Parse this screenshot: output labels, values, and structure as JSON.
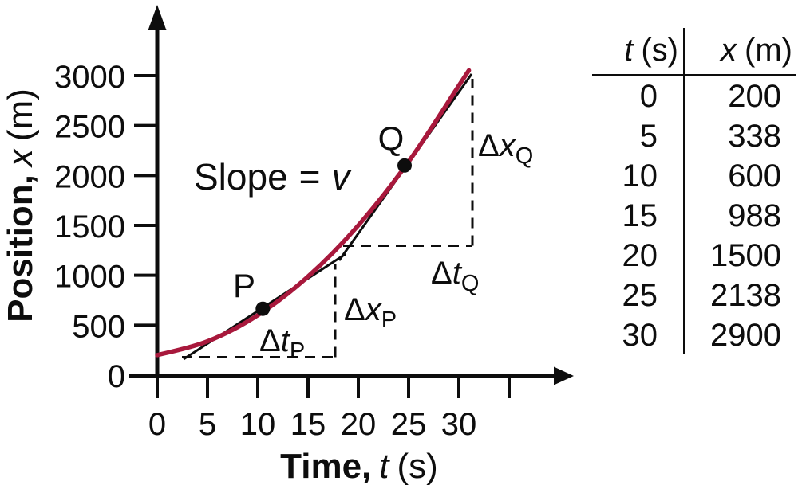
{
  "chart_data": {
    "type": "line",
    "x": [
      0,
      5,
      10,
      15,
      20,
      25,
      30
    ],
    "y": [
      200,
      338,
      600,
      988,
      1500,
      2138,
      2900
    ],
    "x_axis": {
      "label_main": "Time,",
      "label_var": "t",
      "label_unit": "(s)",
      "tick_values": [
        0,
        5,
        10,
        15,
        20,
        25,
        30,
        35
      ],
      "tick_labels": [
        "0",
        "5",
        "10",
        "15",
        "20",
        "25",
        "30",
        ""
      ]
    },
    "y_axis": {
      "label_main": "Position,",
      "label_var": "x",
      "label_unit": "(m)",
      "tick_values": [
        0,
        500,
        1000,
        1500,
        2000,
        2500,
        3000
      ],
      "tick_labels": [
        "0",
        "500",
        "1000",
        "1500",
        "2000",
        "2500",
        "3000"
      ]
    },
    "xlim": [
      0,
      35
    ],
    "ylim": [
      0,
      3200
    ],
    "grid": false,
    "legend": "none",
    "curve_color": "#a8183c",
    "ink_color": "#0d0d0d",
    "points_of_interest": [
      {
        "label": "P",
        "t": 10.5,
        "x_m": 665
      },
      {
        "label": "Q",
        "t": 24.6,
        "x_m": 2100
      }
    ],
    "annotations": {
      "slope_label": "Slope",
      "slope_eq": "=",
      "slope_var": "v",
      "point_p": "P",
      "point_q": "Q",
      "delta": "Δ",
      "var_x": "x",
      "var_t": "t",
      "sub_p": "P",
      "sub_q": "Q"
    },
    "table": {
      "headers": [
        {
          "var": "t",
          "unit": "(s)"
        },
        {
          "var": "x",
          "unit": "(m)"
        }
      ],
      "rows": [
        [
          "0",
          "200"
        ],
        [
          "5",
          "338"
        ],
        [
          "10",
          "600"
        ],
        [
          "15",
          "988"
        ],
        [
          "20",
          "1500"
        ],
        [
          "25",
          "2138"
        ],
        [
          "30",
          "2900"
        ]
      ]
    }
  }
}
